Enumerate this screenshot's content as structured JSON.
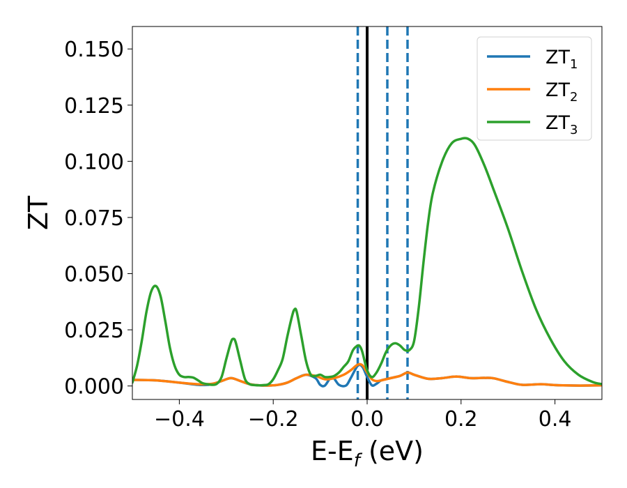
{
  "chart_data": {
    "type": "line",
    "xlabel": {
      "main": "E-E",
      "sub": "f",
      "unit": " (eV)"
    },
    "ylabel": "ZT",
    "xlim": [
      -0.5,
      0.5
    ],
    "ylim": [
      -0.006,
      0.16
    ],
    "xticks": [
      -0.4,
      -0.2,
      0.0,
      0.2,
      0.4
    ],
    "xtick_labels": [
      "−0.4",
      "−0.2",
      "0.0",
      "0.2",
      "0.4"
    ],
    "yticks": [
      0.0,
      0.025,
      0.05,
      0.075,
      0.1,
      0.125,
      0.15
    ],
    "ytick_labels": [
      "0.000",
      "0.025",
      "0.050",
      "0.075",
      "0.100",
      "0.125",
      "0.150"
    ],
    "grid": false,
    "legend_position": "top-right",
    "vertical_lines": [
      {
        "x": 0.0,
        "style": "solid",
        "color": "#000000"
      },
      {
        "x": -0.02,
        "style": "dashed",
        "color": "#1f77b4"
      },
      {
        "x": 0.043,
        "style": "dashed",
        "color": "#1f77b4"
      },
      {
        "x": 0.086,
        "style": "dashed",
        "color": "#1f77b4"
      }
    ],
    "series": [
      {
        "name": "ZT",
        "sub": "1",
        "color": "#1f77b4",
        "x": [
          -0.5,
          -0.45,
          -0.4,
          -0.36,
          -0.34,
          -0.33,
          -0.31,
          -0.29,
          -0.27,
          -0.25,
          -0.23,
          -0.21,
          -0.19,
          -0.17,
          -0.15,
          -0.13,
          -0.11,
          -0.1,
          -0.09,
          -0.075,
          -0.06,
          -0.045,
          -0.035,
          -0.02,
          -0.01,
          0.0,
          0.01,
          0.02,
          0.03,
          0.05,
          0.07,
          0.086,
          0.1,
          0.13,
          0.16,
          0.19,
          0.22,
          0.25,
          0.27,
          0.3,
          0.33,
          0.37,
          0.4,
          0.44,
          0.47,
          0.5
        ],
        "y": [
          0.0027,
          0.0025,
          0.0015,
          0.0005,
          0.0005,
          0.0008,
          0.0022,
          0.0035,
          0.0022,
          0.0008,
          0.0003,
          0.0002,
          0.0005,
          0.0015,
          0.0035,
          0.005,
          0.0035,
          0.0005,
          0.0002,
          0.004,
          0.0005,
          0.0002,
          0.0035,
          0.009,
          0.0085,
          0.004,
          0.0003,
          0.001,
          0.0025,
          0.0035,
          0.0045,
          0.006,
          0.005,
          0.0032,
          0.0035,
          0.0042,
          0.0035,
          0.0036,
          0.0034,
          0.0018,
          0.0005,
          0.0008,
          0.0004,
          0.0002,
          0.0002,
          0.0003
        ]
      },
      {
        "name": "ZT",
        "sub": "2",
        "color": "#ff7f0e",
        "x": [
          -0.5,
          -0.45,
          -0.4,
          -0.36,
          -0.33,
          -0.31,
          -0.29,
          -0.27,
          -0.25,
          -0.23,
          -0.21,
          -0.19,
          -0.17,
          -0.15,
          -0.13,
          -0.11,
          -0.09,
          -0.07,
          -0.05,
          -0.035,
          -0.02,
          -0.01,
          0.0,
          0.01,
          0.02,
          0.03,
          0.05,
          0.07,
          0.086,
          0.1,
          0.13,
          0.16,
          0.19,
          0.22,
          0.25,
          0.27,
          0.3,
          0.33,
          0.37,
          0.4,
          0.44,
          0.47,
          0.5
        ],
        "y": [
          0.0027,
          0.0025,
          0.0015,
          0.0008,
          0.001,
          0.0022,
          0.0035,
          0.0022,
          0.0008,
          0.0003,
          0.0002,
          0.0005,
          0.0015,
          0.0035,
          0.005,
          0.0045,
          0.003,
          0.0035,
          0.005,
          0.007,
          0.0095,
          0.0092,
          0.006,
          0.003,
          0.0022,
          0.0025,
          0.0035,
          0.0045,
          0.006,
          0.005,
          0.0032,
          0.0035,
          0.0042,
          0.0035,
          0.0036,
          0.0034,
          0.0018,
          0.0005,
          0.0008,
          0.0004,
          0.0002,
          0.0002,
          0.0003
        ]
      },
      {
        "name": "ZT",
        "sub": "3",
        "color": "#2ca02c",
        "x": [
          -0.5,
          -0.49,
          -0.48,
          -0.47,
          -0.46,
          -0.45,
          -0.44,
          -0.43,
          -0.42,
          -0.41,
          -0.4,
          -0.39,
          -0.38,
          -0.37,
          -0.36,
          -0.35,
          -0.34,
          -0.33,
          -0.32,
          -0.31,
          -0.3,
          -0.29,
          -0.285,
          -0.28,
          -0.27,
          -0.26,
          -0.25,
          -0.24,
          -0.23,
          -0.22,
          -0.21,
          -0.2,
          -0.19,
          -0.18,
          -0.17,
          -0.16,
          -0.155,
          -0.15,
          -0.14,
          -0.13,
          -0.12,
          -0.11,
          -0.1,
          -0.09,
          -0.08,
          -0.07,
          -0.06,
          -0.05,
          -0.04,
          -0.03,
          -0.02,
          -0.015,
          -0.01,
          0.0,
          0.01,
          0.02,
          0.03,
          0.04,
          0.05,
          0.06,
          0.07,
          0.08,
          0.09,
          0.1,
          0.11,
          0.12,
          0.13,
          0.14,
          0.16,
          0.18,
          0.2,
          0.215,
          0.23,
          0.25,
          0.27,
          0.3,
          0.33,
          0.36,
          0.39,
          0.42,
          0.45,
          0.48,
          0.5
        ],
        "y": [
          0.0015,
          0.009,
          0.02,
          0.033,
          0.042,
          0.0445,
          0.04,
          0.029,
          0.017,
          0.009,
          0.005,
          0.004,
          0.004,
          0.0037,
          0.0025,
          0.0012,
          0.0008,
          0.0005,
          0.001,
          0.004,
          0.012,
          0.0195,
          0.021,
          0.0195,
          0.011,
          0.003,
          0.0008,
          0.0004,
          0.0003,
          0.0004,
          0.0008,
          0.003,
          0.007,
          0.012,
          0.022,
          0.031,
          0.034,
          0.033,
          0.022,
          0.011,
          0.005,
          0.0045,
          0.005,
          0.004,
          0.004,
          0.0045,
          0.006,
          0.0085,
          0.011,
          0.016,
          0.018,
          0.0175,
          0.015,
          0.007,
          0.004,
          0.006,
          0.01,
          0.015,
          0.018,
          0.019,
          0.018,
          0.016,
          0.016,
          0.02,
          0.035,
          0.055,
          0.073,
          0.086,
          0.1,
          0.108,
          0.11,
          0.11,
          0.107,
          0.098,
          0.087,
          0.07,
          0.051,
          0.034,
          0.021,
          0.011,
          0.005,
          0.0018,
          0.0008
        ]
      }
    ]
  }
}
